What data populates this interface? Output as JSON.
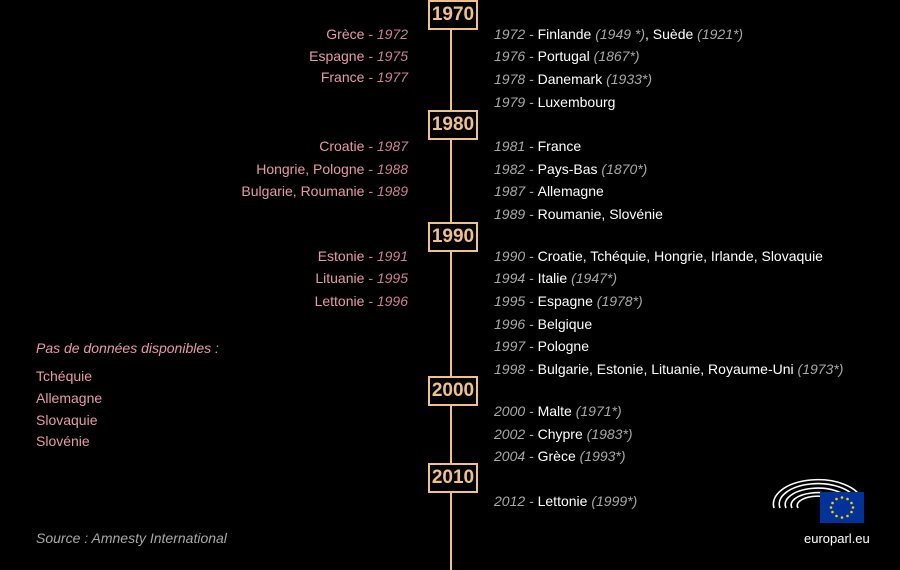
{
  "decades": [
    "1970",
    "1980",
    "1990",
    "2000",
    "2010"
  ],
  "left_events": [
    {
      "country": "Grèce",
      "year": "1972"
    },
    {
      "country": "Espagne",
      "year": "1975"
    },
    {
      "country": "France",
      "year": "1977"
    },
    {
      "country": "Croatie",
      "year": "1987"
    },
    {
      "country": "Hongrie, Pologne",
      "year": "1988"
    },
    {
      "country": "Bulgarie, Roumanie",
      "year": "1989"
    },
    {
      "country": "Estonie",
      "year": "1991"
    },
    {
      "country": "Lituanie",
      "year": "1995"
    },
    {
      "country": "Lettonie",
      "year": "1996"
    }
  ],
  "right_events": [
    {
      "year": "1972",
      "text": "Finlande",
      "note": "(1949 *)",
      "text2": ", Suède",
      "note2": "(1921*)"
    },
    {
      "year": "1976",
      "text": "Portugal",
      "note": "(1867*)"
    },
    {
      "year": "1978",
      "text": "Danemark",
      "note": "(1933*)"
    },
    {
      "year": "1979",
      "text": "Luxembourg"
    },
    {
      "year": "1981",
      "text": "France"
    },
    {
      "year": "1982",
      "text": "Pays-Bas",
      "note": "(1870*)"
    },
    {
      "year": "1987",
      "text": "Allemagne"
    },
    {
      "year": "1989",
      "text": "Roumanie, Slovénie"
    },
    {
      "year": "1990",
      "text": "Croatie, Tchéquie, Hongrie, Irlande, Slovaquie"
    },
    {
      "year": "1994",
      "text": "Italie",
      "note": "(1947*)"
    },
    {
      "year": "1995",
      "text": "Espagne",
      "note": "(1978*)"
    },
    {
      "year": "1996",
      "text": "Belgique"
    },
    {
      "year": "1997",
      "text": "Pologne"
    },
    {
      "year": "1998",
      "text": "Bulgarie,  Estonie, Lituanie, Royaume-Uni",
      "note": "(1973*)"
    },
    {
      "year": "2000",
      "text": "Malte",
      "note": "(1971*)"
    },
    {
      "year": "2002",
      "text": "Chypre",
      "note": "(1983*)"
    },
    {
      "year": "2004",
      "text": "Grèce",
      "note": "(1993*)"
    },
    {
      "year": "2012",
      "text": "Lettonie",
      "note": "(1999*)"
    }
  ],
  "no_data": {
    "title": "Pas de données disponibles :",
    "items": [
      "Tchéquie",
      "Allemagne",
      "Slovaquie",
      "Slovénie"
    ]
  },
  "source": "Source : Amnesty International",
  "logo": {
    "site": "europarl.eu"
  },
  "colors": {
    "accent": "#f0c188",
    "left_text": "#e89aa8",
    "eu_blue": "#003399",
    "eu_star": "#ffcc00"
  }
}
